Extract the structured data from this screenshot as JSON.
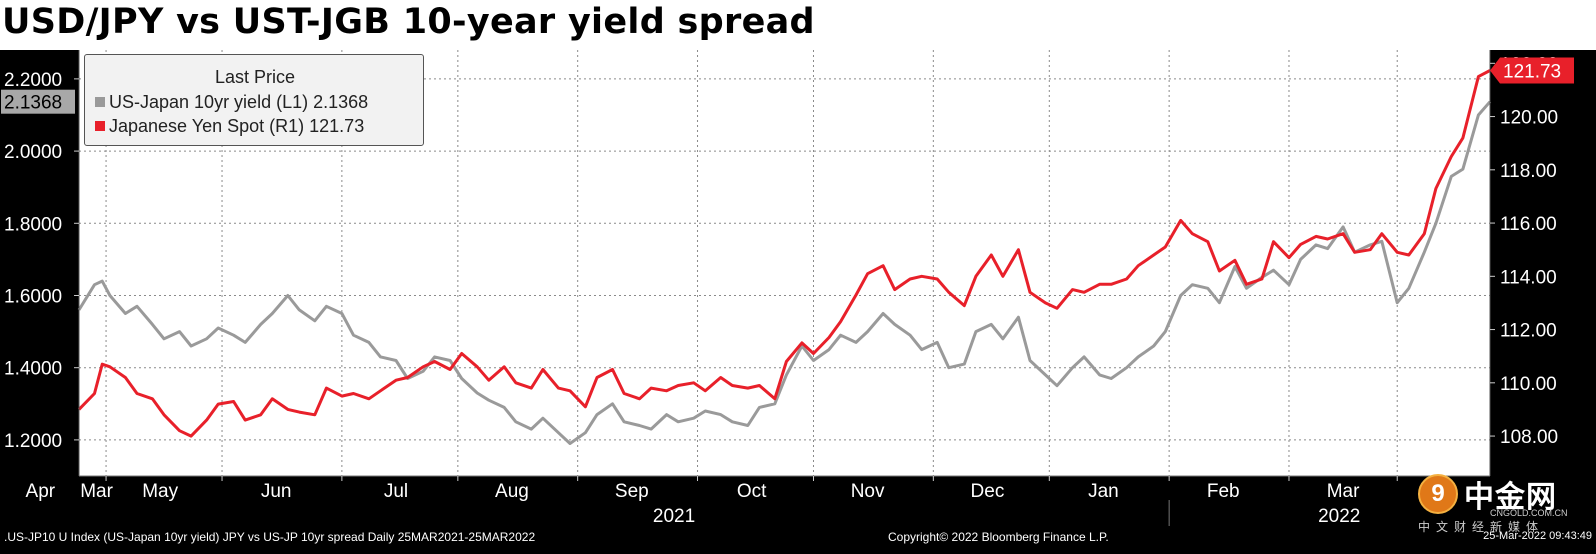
{
  "title": "USD/JPY vs UST-JGB 10-year yield spread",
  "legend": {
    "title": "Last Price",
    "items": [
      {
        "label": "US-Japan 10yr yield  (L1) 2.1368",
        "color": "#9a9a9a"
      },
      {
        "label": "Japanese Yen Spot  (R1)   121.73",
        "color": "#e8202a"
      }
    ]
  },
  "footer": {
    "source": ".US-JP10 U Index (US-Japan 10yr yield) JPY vs US-JP 10yr spread  Daily 25MAR2021-25MAR2022",
    "copyright": "Copyright© 2022 Bloomberg Finance L.P.",
    "timestamp": "25-Mar-2022 09:43:49"
  },
  "watermark": {
    "name": "中金网",
    "domain": "CNGOLD.COM.CN",
    "tagline": "中文财经新媒体"
  },
  "chart_data": {
    "type": "line",
    "title": "USD/JPY vs UST-JGB 10-year yield spread",
    "x_months": [
      "Mar",
      "Apr",
      "May",
      "Jun",
      "Jul",
      "Aug",
      "Sep",
      "Oct",
      "Nov",
      "Dec",
      "Jan",
      "Feb",
      "Mar"
    ],
    "x_years": [
      "2021",
      "2022"
    ],
    "x_range": [
      "2021-03-25",
      "2022-03-25"
    ],
    "grid": true,
    "legend_position": "top-left",
    "left_axis": {
      "ylim": [
        1.1,
        2.28
      ],
      "ticks": [
        "1.2000",
        "1.4000",
        "1.6000",
        "1.8000",
        "2.0000",
        "2.2000"
      ],
      "last_value_label": "2.1368"
    },
    "right_axis": {
      "ylim": [
        106.5,
        122.5
      ],
      "ticks": [
        "108.00",
        "110.00",
        "112.00",
        "114.00",
        "116.00",
        "118.00",
        "120.00",
        "122.00"
      ],
      "last_value_label": "121.73"
    },
    "series": [
      {
        "name": "US-Japan 10yr yield",
        "axis": "left",
        "color": "#9a9a9a",
        "points": [
          [
            "2021-03-25",
            1.56
          ],
          [
            "2021-03-29",
            1.63
          ],
          [
            "2021-03-31",
            1.64
          ],
          [
            "2021-04-02",
            1.6
          ],
          [
            "2021-04-06",
            1.55
          ],
          [
            "2021-04-09",
            1.57
          ],
          [
            "2021-04-13",
            1.52
          ],
          [
            "2021-04-16",
            1.48
          ],
          [
            "2021-04-20",
            1.5
          ],
          [
            "2021-04-23",
            1.46
          ],
          [
            "2021-04-27",
            1.48
          ],
          [
            "2021-04-30",
            1.51
          ],
          [
            "2021-05-04",
            1.49
          ],
          [
            "2021-05-07",
            1.47
          ],
          [
            "2021-05-11",
            1.52
          ],
          [
            "2021-05-14",
            1.55
          ],
          [
            "2021-05-18",
            1.6
          ],
          [
            "2021-05-21",
            1.56
          ],
          [
            "2021-05-25",
            1.53
          ],
          [
            "2021-05-28",
            1.57
          ],
          [
            "2021-06-01",
            1.55
          ],
          [
            "2021-06-04",
            1.49
          ],
          [
            "2021-06-08",
            1.47
          ],
          [
            "2021-06-11",
            1.43
          ],
          [
            "2021-06-15",
            1.42
          ],
          [
            "2021-06-18",
            1.37
          ],
          [
            "2021-06-22",
            1.39
          ],
          [
            "2021-06-25",
            1.43
          ],
          [
            "2021-06-29",
            1.42
          ],
          [
            "2021-07-02",
            1.37
          ],
          [
            "2021-07-06",
            1.33
          ],
          [
            "2021-07-09",
            1.31
          ],
          [
            "2021-07-13",
            1.29
          ],
          [
            "2021-07-16",
            1.25
          ],
          [
            "2021-07-20",
            1.23
          ],
          [
            "2021-07-23",
            1.26
          ],
          [
            "2021-07-27",
            1.22
          ],
          [
            "2021-07-30",
            1.19
          ],
          [
            "2021-08-03",
            1.22
          ],
          [
            "2021-08-06",
            1.27
          ],
          [
            "2021-08-10",
            1.3
          ],
          [
            "2021-08-13",
            1.25
          ],
          [
            "2021-08-17",
            1.24
          ],
          [
            "2021-08-20",
            1.23
          ],
          [
            "2021-08-24",
            1.27
          ],
          [
            "2021-08-27",
            1.25
          ],
          [
            "2021-08-31",
            1.26
          ],
          [
            "2021-09-03",
            1.28
          ],
          [
            "2021-09-07",
            1.27
          ],
          [
            "2021-09-10",
            1.25
          ],
          [
            "2021-09-14",
            1.24
          ],
          [
            "2021-09-17",
            1.29
          ],
          [
            "2021-09-21",
            1.3
          ],
          [
            "2021-09-24",
            1.38
          ],
          [
            "2021-09-28",
            1.46
          ],
          [
            "2021-10-01",
            1.42
          ],
          [
            "2021-10-05",
            1.45
          ],
          [
            "2021-10-08",
            1.49
          ],
          [
            "2021-10-12",
            1.47
          ],
          [
            "2021-10-15",
            1.5
          ],
          [
            "2021-10-19",
            1.55
          ],
          [
            "2021-10-22",
            1.52
          ],
          [
            "2021-10-26",
            1.49
          ],
          [
            "2021-10-29",
            1.45
          ],
          [
            "2021-11-02",
            1.47
          ],
          [
            "2021-11-05",
            1.4
          ],
          [
            "2021-11-09",
            1.41
          ],
          [
            "2021-11-12",
            1.5
          ],
          [
            "2021-11-16",
            1.52
          ],
          [
            "2021-11-19",
            1.48
          ],
          [
            "2021-11-23",
            1.54
          ],
          [
            "2021-11-26",
            1.42
          ],
          [
            "2021-11-30",
            1.38
          ],
          [
            "2021-12-03",
            1.35
          ],
          [
            "2021-12-07",
            1.4
          ],
          [
            "2021-12-10",
            1.43
          ],
          [
            "2021-12-14",
            1.38
          ],
          [
            "2021-12-17",
            1.37
          ],
          [
            "2021-12-21",
            1.4
          ],
          [
            "2021-12-24",
            1.43
          ],
          [
            "2021-12-28",
            1.46
          ],
          [
            "2021-12-31",
            1.5
          ],
          [
            "2022-01-04",
            1.6
          ],
          [
            "2022-01-07",
            1.63
          ],
          [
            "2022-01-11",
            1.62
          ],
          [
            "2022-01-14",
            1.58
          ],
          [
            "2022-01-18",
            1.68
          ],
          [
            "2022-01-21",
            1.62
          ],
          [
            "2022-01-25",
            1.65
          ],
          [
            "2022-01-28",
            1.67
          ],
          [
            "2022-02-01",
            1.63
          ],
          [
            "2022-02-04",
            1.7
          ],
          [
            "2022-02-08",
            1.74
          ],
          [
            "2022-02-11",
            1.73
          ],
          [
            "2022-02-15",
            1.79
          ],
          [
            "2022-02-18",
            1.72
          ],
          [
            "2022-02-22",
            1.74
          ],
          [
            "2022-02-25",
            1.75
          ],
          [
            "2022-03-01",
            1.58
          ],
          [
            "2022-03-04",
            1.62
          ],
          [
            "2022-03-08",
            1.72
          ],
          [
            "2022-03-11",
            1.8
          ],
          [
            "2022-03-15",
            1.93
          ],
          [
            "2022-03-18",
            1.95
          ],
          [
            "2022-03-22",
            2.1
          ],
          [
            "2022-03-25",
            2.1368
          ]
        ]
      },
      {
        "name": "Japanese Yen Spot",
        "axis": "right",
        "color": "#e8202a",
        "points": [
          [
            "2021-03-25",
            109.0
          ],
          [
            "2021-03-29",
            109.6
          ],
          [
            "2021-03-31",
            110.7
          ],
          [
            "2021-04-02",
            110.6
          ],
          [
            "2021-04-06",
            110.2
          ],
          [
            "2021-04-09",
            109.6
          ],
          [
            "2021-04-13",
            109.4
          ],
          [
            "2021-04-16",
            108.8
          ],
          [
            "2021-04-20",
            108.2
          ],
          [
            "2021-04-23",
            108.0
          ],
          [
            "2021-04-27",
            108.6
          ],
          [
            "2021-04-30",
            109.2
          ],
          [
            "2021-05-04",
            109.3
          ],
          [
            "2021-05-07",
            108.6
          ],
          [
            "2021-05-11",
            108.8
          ],
          [
            "2021-05-14",
            109.4
          ],
          [
            "2021-05-18",
            109.0
          ],
          [
            "2021-05-21",
            108.9
          ],
          [
            "2021-05-25",
            108.8
          ],
          [
            "2021-05-28",
            109.8
          ],
          [
            "2021-06-01",
            109.5
          ],
          [
            "2021-06-04",
            109.6
          ],
          [
            "2021-06-08",
            109.4
          ],
          [
            "2021-06-11",
            109.7
          ],
          [
            "2021-06-15",
            110.1
          ],
          [
            "2021-06-18",
            110.2
          ],
          [
            "2021-06-22",
            110.6
          ],
          [
            "2021-06-25",
            110.8
          ],
          [
            "2021-06-29",
            110.5
          ],
          [
            "2021-07-02",
            111.1
          ],
          [
            "2021-07-06",
            110.6
          ],
          [
            "2021-07-09",
            110.1
          ],
          [
            "2021-07-13",
            110.6
          ],
          [
            "2021-07-16",
            110.0
          ],
          [
            "2021-07-20",
            109.8
          ],
          [
            "2021-07-23",
            110.5
          ],
          [
            "2021-07-27",
            109.8
          ],
          [
            "2021-07-30",
            109.7
          ],
          [
            "2021-08-03",
            109.1
          ],
          [
            "2021-08-06",
            110.2
          ],
          [
            "2021-08-10",
            110.5
          ],
          [
            "2021-08-13",
            109.6
          ],
          [
            "2021-08-17",
            109.4
          ],
          [
            "2021-08-20",
            109.8
          ],
          [
            "2021-08-24",
            109.7
          ],
          [
            "2021-08-27",
            109.9
          ],
          [
            "2021-08-31",
            110.0
          ],
          [
            "2021-09-03",
            109.7
          ],
          [
            "2021-09-07",
            110.2
          ],
          [
            "2021-09-10",
            109.9
          ],
          [
            "2021-09-14",
            109.8
          ],
          [
            "2021-09-17",
            109.9
          ],
          [
            "2021-09-21",
            109.4
          ],
          [
            "2021-09-24",
            110.8
          ],
          [
            "2021-09-28",
            111.5
          ],
          [
            "2021-10-01",
            111.1
          ],
          [
            "2021-10-05",
            111.7
          ],
          [
            "2021-10-08",
            112.3
          ],
          [
            "2021-10-12",
            113.3
          ],
          [
            "2021-10-15",
            114.1
          ],
          [
            "2021-10-19",
            114.4
          ],
          [
            "2021-10-22",
            113.5
          ],
          [
            "2021-10-26",
            113.9
          ],
          [
            "2021-10-29",
            114.0
          ],
          [
            "2021-11-02",
            113.9
          ],
          [
            "2021-11-05",
            113.4
          ],
          [
            "2021-11-09",
            112.9
          ],
          [
            "2021-11-12",
            114.0
          ],
          [
            "2021-11-16",
            114.8
          ],
          [
            "2021-11-19",
            114.0
          ],
          [
            "2021-11-23",
            115.0
          ],
          [
            "2021-11-26",
            113.4
          ],
          [
            "2021-11-30",
            113.0
          ],
          [
            "2021-12-03",
            112.8
          ],
          [
            "2021-12-07",
            113.5
          ],
          [
            "2021-12-10",
            113.4
          ],
          [
            "2021-12-14",
            113.7
          ],
          [
            "2021-12-17",
            113.7
          ],
          [
            "2021-12-21",
            113.9
          ],
          [
            "2021-12-24",
            114.4
          ],
          [
            "2021-12-28",
            114.8
          ],
          [
            "2021-12-31",
            115.1
          ],
          [
            "2022-01-04",
            116.1
          ],
          [
            "2022-01-07",
            115.6
          ],
          [
            "2022-01-11",
            115.3
          ],
          [
            "2022-01-14",
            114.2
          ],
          [
            "2022-01-18",
            114.6
          ],
          [
            "2022-01-21",
            113.7
          ],
          [
            "2022-01-25",
            113.9
          ],
          [
            "2022-01-28",
            115.3
          ],
          [
            "2022-02-01",
            114.7
          ],
          [
            "2022-02-04",
            115.2
          ],
          [
            "2022-02-08",
            115.5
          ],
          [
            "2022-02-11",
            115.4
          ],
          [
            "2022-02-15",
            115.6
          ],
          [
            "2022-02-18",
            114.9
          ],
          [
            "2022-02-22",
            115.0
          ],
          [
            "2022-02-25",
            115.6
          ],
          [
            "2022-03-01",
            114.9
          ],
          [
            "2022-03-04",
            114.8
          ],
          [
            "2022-03-08",
            115.6
          ],
          [
            "2022-03-11",
            117.3
          ],
          [
            "2022-03-15",
            118.5
          ],
          [
            "2022-03-18",
            119.2
          ],
          [
            "2022-03-22",
            121.5
          ],
          [
            "2022-03-25",
            121.73
          ]
        ]
      }
    ]
  }
}
